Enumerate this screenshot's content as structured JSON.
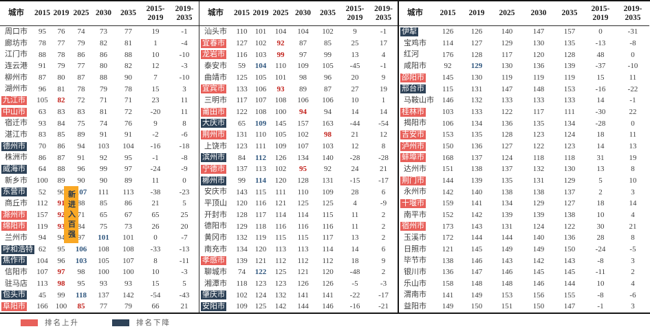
{
  "colors": {
    "up_bg": "#e8605a",
    "down_bg": "#2e4257",
    "red_text": "#c2211b",
    "blue_text": "#2f567e",
    "badge_bg": "#f9a825",
    "badge_text": "#2b3a4a"
  },
  "columns": [
    {
      "label": "城市"
    },
    {
      "label": "2015"
    },
    {
      "label": "2019"
    },
    {
      "label": "2025"
    },
    {
      "label": "2030"
    },
    {
      "label": "2035"
    },
    {
      "label": "2015-",
      "label2": "2019"
    },
    {
      "label": "2019-",
      "label2": "2035"
    }
  ],
  "badge": {
    "text": "新进入百强"
  },
  "legend": [
    {
      "label": "排名上升",
      "type": "up"
    },
    {
      "label": "排名下降",
      "type": "down"
    }
  ],
  "panels": [
    {
      "rows": [
        {
          "city": "周口市",
          "v": [
            95,
            76,
            74,
            73,
            77,
            19,
            -1
          ]
        },
        {
          "city": "廊坊市",
          "v": [
            78,
            77,
            79,
            82,
            81,
            1,
            -4
          ]
        },
        {
          "city": "江门市",
          "v": [
            88,
            78,
            86,
            86,
            88,
            10,
            -10
          ]
        },
        {
          "city": "连云港",
          "v": [
            91,
            79,
            77,
            80,
            82,
            12,
            -3
          ]
        },
        {
          "city": "柳州市",
          "v": [
            87,
            80,
            87,
            88,
            90,
            7,
            -10
          ]
        },
        {
          "city": "湖州市",
          "v": [
            96,
            81,
            78,
            79,
            78,
            15,
            3
          ]
        },
        {
          "city": "九江市",
          "s": "up",
          "v": [
            105,
            82,
            72,
            71,
            71,
            23,
            11
          ],
          "hl": {
            "1": "red"
          }
        },
        {
          "city": "中山市",
          "s": "up",
          "v": [
            63,
            83,
            83,
            81,
            72,
            -20,
            11
          ]
        },
        {
          "city": "宿迁市",
          "v": [
            93,
            84,
            75,
            74,
            76,
            9,
            8
          ]
        },
        {
          "city": "湛江市",
          "v": [
            83,
            85,
            89,
            91,
            91,
            -2,
            -6
          ]
        },
        {
          "city": "德州市",
          "s": "down",
          "v": [
            70,
            86,
            94,
            103,
            104,
            -16,
            -18
          ]
        },
        {
          "city": "株洲市",
          "v": [
            86,
            87,
            91,
            92,
            95,
            -1,
            -8
          ]
        },
        {
          "city": "威海市",
          "s": "down",
          "v": [
            64,
            88,
            96,
            99,
            97,
            -24,
            -9
          ]
        },
        {
          "city": "新乡市",
          "v": [
            100,
            89,
            90,
            90,
            89,
            11,
            0
          ]
        },
        {
          "city": "东营市",
          "s": "down",
          "v": [
            52,
            90,
            107,
            111,
            113,
            -38,
            -23
          ],
          "hl": {
            "2": "blue"
          }
        },
        {
          "city": "商丘市",
          "v": [
            112,
            91,
            88,
            85,
            86,
            21,
            5
          ],
          "hl": {
            "1": "red"
          }
        },
        {
          "city": "滁州市",
          "s": "up",
          "v": [
            157,
            92,
            71,
            65,
            67,
            65,
            25
          ],
          "hl": {
            "1": "red"
          }
        },
        {
          "city": "绵阳市",
          "s": "up",
          "v": [
            119,
            93,
            84,
            75,
            73,
            26,
            20
          ],
          "hl": {
            "1": "red"
          }
        },
        {
          "city": "兰州市",
          "v": [
            94,
            94,
            97,
            101,
            101,
            0,
            -7
          ],
          "hl": {
            "3": "blue"
          }
        },
        {
          "city": "呼和浩特",
          "s": "down",
          "v": [
            62,
            95,
            106,
            108,
            108,
            -33,
            -13
          ],
          "hl": {
            "2": "blue"
          }
        },
        {
          "city": "焦作市",
          "s": "down",
          "v": [
            104,
            96,
            103,
            105,
            107,
            8,
            -11
          ],
          "hl": {
            "2": "blue"
          }
        },
        {
          "city": "信阳市",
          "v": [
            107,
            97,
            98,
            100,
            100,
            10,
            -3
          ],
          "hl": {
            "1": "red"
          }
        },
        {
          "city": "驻马店",
          "v": [
            113,
            98,
            95,
            93,
            93,
            15,
            5
          ],
          "hl": {
            "1": "red"
          }
        },
        {
          "city": "包头市",
          "s": "down",
          "v": [
            45,
            99,
            118,
            137,
            142,
            -54,
            -43
          ],
          "hl": {
            "2": "blue"
          }
        },
        {
          "city": "阜阳市",
          "s": "up",
          "v": [
            166,
            100,
            85,
            77,
            79,
            66,
            21
          ],
          "hl": {
            "2": "red"
          }
        }
      ]
    },
    {
      "rows": [
        {
          "city": "汕头市",
          "v": [
            110,
            101,
            104,
            104,
            102,
            9,
            -1
          ]
        },
        {
          "city": "宜春市",
          "s": "up",
          "v": [
            127,
            102,
            92,
            87,
            85,
            25,
            17
          ],
          "hl": {
            "2": "red"
          }
        },
        {
          "city": "龙岩市",
          "s": "up",
          "v": [
            116,
            103,
            99,
            97,
            99,
            13,
            4
          ],
          "hl": {
            "2": "red"
          }
        },
        {
          "city": "泰安市",
          "v": [
            59,
            104,
            110,
            109,
            105,
            -45,
            -1
          ],
          "hl": {
            "1": "blue"
          }
        },
        {
          "city": "曲靖市",
          "v": [
            125,
            105,
            101,
            98,
            96,
            20,
            9
          ]
        },
        {
          "city": "宜宾市",
          "s": "up",
          "v": [
            133,
            106,
            93,
            89,
            87,
            27,
            19
          ],
          "hl": {
            "2": "red"
          }
        },
        {
          "city": "三明市",
          "v": [
            117,
            107,
            108,
            106,
            106,
            10,
            1
          ]
        },
        {
          "city": "莆田市",
          "s": "up",
          "v": [
            122,
            108,
            100,
            94,
            94,
            14,
            14
          ],
          "hl": {
            "3": "red"
          }
        },
        {
          "city": "大庆市",
          "s": "down",
          "v": [
            65,
            109,
            145,
            157,
            163,
            -44,
            -54
          ],
          "hl": {
            "1": "blue"
          }
        },
        {
          "city": "荆州市",
          "s": "up",
          "v": [
            131,
            110,
            105,
            102,
            98,
            21,
            12
          ],
          "hl": {
            "4": "red"
          }
        },
        {
          "city": "上饶市",
          "v": [
            123,
            111,
            109,
            107,
            103,
            12,
            8
          ]
        },
        {
          "city": "滨州市",
          "s": "down",
          "v": [
            84,
            112,
            126,
            134,
            140,
            -28,
            -28
          ],
          "hl": {
            "1": "blue"
          }
        },
        {
          "city": "宁德市",
          "s": "up",
          "v": [
            137,
            113,
            102,
            95,
            92,
            24,
            21
          ],
          "hl": {
            "3": "red"
          }
        },
        {
          "city": "郴州市",
          "s": "down",
          "v": [
            99,
            114,
            120,
            128,
            131,
            -15,
            -17
          ],
          "hl": {
            "1": "blue"
          }
        },
        {
          "city": "安庆市",
          "v": [
            143,
            115,
            111,
            110,
            109,
            28,
            6
          ]
        },
        {
          "city": "平顶山",
          "v": [
            120,
            116,
            121,
            125,
            125,
            4,
            -9
          ]
        },
        {
          "city": "开封市",
          "v": [
            128,
            117,
            114,
            114,
            115,
            11,
            2
          ]
        },
        {
          "city": "德阳市",
          "v": [
            129,
            118,
            116,
            116,
            116,
            11,
            2
          ]
        },
        {
          "city": "黄冈市",
          "v": [
            132,
            119,
            115,
            115,
            117,
            13,
            2
          ]
        },
        {
          "city": "南充市",
          "v": [
            134,
            120,
            113,
            113,
            114,
            14,
            6
          ]
        },
        {
          "city": "孝感市",
          "s": "up",
          "v": [
            139,
            121,
            112,
            112,
            112,
            18,
            9
          ]
        },
        {
          "city": "聊城市",
          "v": [
            74,
            122,
            125,
            121,
            120,
            -48,
            2
          ],
          "hl": {
            "1": "blue"
          }
        },
        {
          "city": "湘潭市",
          "v": [
            118,
            123,
            123,
            126,
            126,
            -5,
            -3
          ]
        },
        {
          "city": "肇庆市",
          "s": "down",
          "v": [
            102,
            124,
            132,
            141,
            141,
            -22,
            -17
          ]
        },
        {
          "city": "安阳市",
          "s": "down",
          "v": [
            109,
            125,
            142,
            144,
            146,
            -16,
            -21
          ]
        }
      ]
    },
    {
      "rows": [
        {
          "city": "伊犁",
          "s": "down",
          "v": [
            126,
            126,
            140,
            147,
            157,
            0,
            -31
          ]
        },
        {
          "city": "宝鸡市",
          "v": [
            114,
            127,
            129,
            130,
            135,
            -13,
            -8
          ]
        },
        {
          "city": "红河",
          "v": [
            176,
            128,
            117,
            120,
            128,
            48,
            0
          ]
        },
        {
          "city": "咸阳市",
          "v": [
            92,
            129,
            130,
            136,
            139,
            -37,
            -10
          ],
          "hl": {
            "1": "blue"
          }
        },
        {
          "city": "邵阳市",
          "s": "up",
          "v": [
            145,
            130,
            119,
            119,
            119,
            15,
            11
          ]
        },
        {
          "city": "邢台市",
          "s": "down",
          "v": [
            115,
            131,
            147,
            148,
            153,
            -16,
            -22
          ]
        },
        {
          "city": "马鞍山市",
          "v": [
            146,
            132,
            133,
            133,
            133,
            14,
            -1
          ]
        },
        {
          "city": "桂林市",
          "s": "up",
          "v": [
            103,
            133,
            122,
            117,
            111,
            -30,
            22
          ]
        },
        {
          "city": "揭阳市",
          "v": [
            106,
            134,
            136,
            135,
            134,
            -28,
            0
          ]
        },
        {
          "city": "吉安市",
          "s": "up",
          "v": [
            153,
            135,
            128,
            123,
            124,
            18,
            11
          ]
        },
        {
          "city": "泸州市",
          "s": "up",
          "v": [
            150,
            136,
            127,
            122,
            123,
            14,
            13
          ]
        },
        {
          "city": "蚌埠市",
          "s": "up",
          "v": [
            168,
            137,
            124,
            118,
            118,
            31,
            19
          ]
        },
        {
          "city": "达州市",
          "v": [
            151,
            138,
            137,
            132,
            130,
            13,
            8
          ]
        },
        {
          "city": "荆门市",
          "s": "up",
          "v": [
            144,
            139,
            135,
            131,
            129,
            5,
            10
          ]
        },
        {
          "city": "永州市",
          "v": [
            142,
            140,
            138,
            138,
            137,
            2,
            3
          ]
        },
        {
          "city": "十堰市",
          "s": "up",
          "v": [
            159,
            141,
            134,
            129,
            127,
            18,
            14
          ]
        },
        {
          "city": "南平市",
          "v": [
            152,
            142,
            139,
            139,
            138,
            10,
            4
          ]
        },
        {
          "city": "宿州市",
          "s": "up",
          "v": [
            173,
            143,
            131,
            124,
            122,
            30,
            21
          ]
        },
        {
          "city": "玉溪市",
          "v": [
            172,
            144,
            144,
            140,
            136,
            28,
            8
          ]
        },
        {
          "city": "日照市",
          "v": [
            121,
            145,
            149,
            149,
            150,
            -24,
            -5
          ]
        },
        {
          "city": "毕节市",
          "v": [
            138,
            146,
            143,
            142,
            143,
            -8,
            3
          ]
        },
        {
          "city": "银川市",
          "v": [
            136,
            147,
            146,
            145,
            145,
            -11,
            2
          ]
        },
        {
          "city": "乐山市",
          "v": [
            158,
            148,
            148,
            146,
            144,
            10,
            4
          ]
        },
        {
          "city": "渭南市",
          "v": [
            141,
            149,
            153,
            156,
            155,
            -8,
            -6
          ]
        },
        {
          "city": "益阳市",
          "v": [
            149,
            150,
            151,
            150,
            147,
            -1,
            3
          ]
        }
      ]
    }
  ]
}
